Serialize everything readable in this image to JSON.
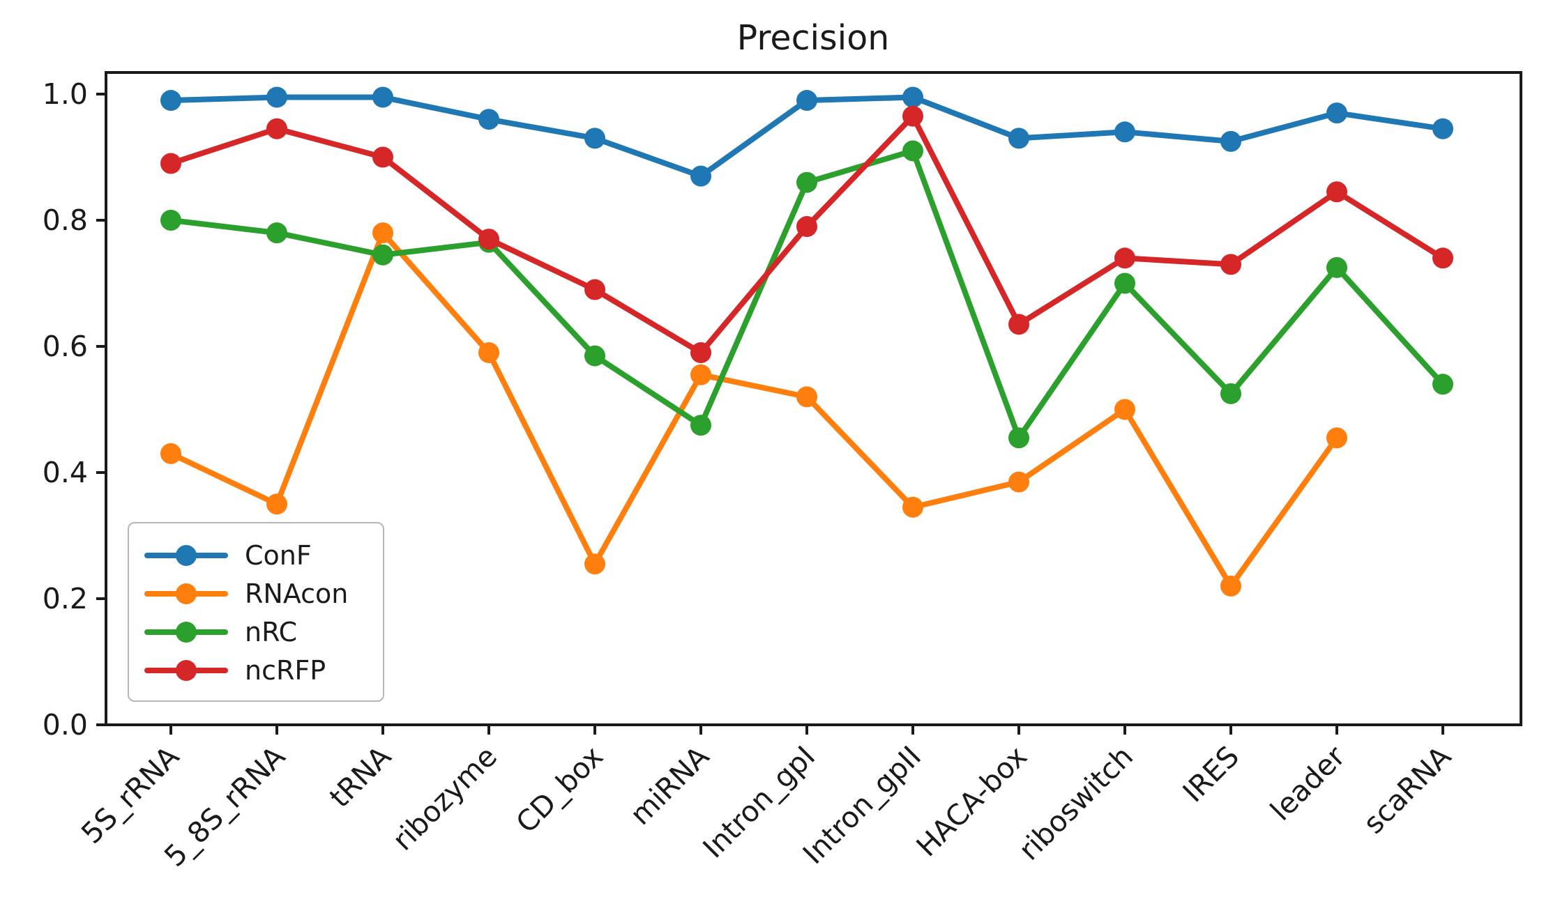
{
  "chart_data": {
    "type": "line",
    "title": "Precision",
    "categories": [
      "5S_rRNA",
      "5_8S_rRNA",
      "tRNA",
      "ribozyme",
      "CD_box",
      "miRNA",
      "Intron_gpI",
      "Intron_gpII",
      "HACA-box",
      "riboswitch",
      "IRES",
      "leader",
      "scaRNA"
    ],
    "series": [
      {
        "name": "ConF",
        "color": "#1f77b4",
        "values": [
          0.99,
          0.995,
          0.995,
          0.96,
          0.93,
          0.87,
          0.99,
          0.995,
          0.93,
          0.94,
          0.925,
          0.97,
          0.945
        ]
      },
      {
        "name": "RNAcon",
        "color": "#ff7f0e",
        "values": [
          0.43,
          0.35,
          0.78,
          0.59,
          0.255,
          0.555,
          0.52,
          0.345,
          0.385,
          0.5,
          0.22,
          0.455,
          null
        ]
      },
      {
        "name": "nRC",
        "color": "#2ca02c",
        "values": [
          0.8,
          0.78,
          0.745,
          0.765,
          0.585,
          0.475,
          0.86,
          0.91,
          0.455,
          0.7,
          0.525,
          0.725,
          0.54
        ]
      },
      {
        "name": "ncRFP",
        "color": "#d62728",
        "values": [
          0.89,
          0.945,
          0.9,
          0.77,
          0.69,
          0.59,
          0.79,
          0.965,
          0.635,
          0.74,
          0.73,
          0.845,
          0.74
        ]
      }
    ],
    "yticks": [
      0.0,
      0.2,
      0.4,
      0.6,
      0.8,
      1.0
    ],
    "ylim": [
      0.0,
      1.035
    ],
    "xlabel": "",
    "ylabel": "",
    "grid": false,
    "marker": "circle",
    "legend_position": "lower left",
    "x_tick_rotation": 45,
    "axis_color": "#1a1a1a",
    "background_color": "#ffffff"
  }
}
